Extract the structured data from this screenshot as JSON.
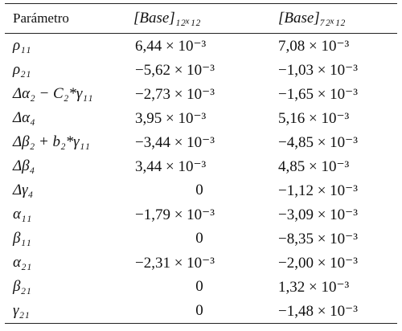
{
  "table": {
    "header": [
      "Parámetro",
      "[Base]₁₂ₓ₁₂",
      "[Base]₇₂ₓ₁₂"
    ],
    "rows": [
      [
        "ρ₁₁",
        "6,44 × 10⁻³",
        "7,08 × 10⁻³"
      ],
      [
        "ρ₂₁",
        "−5,62 × 10⁻³",
        "−1,03 × 10⁻³"
      ],
      [
        "Δα₂ − C₂*γ₁₁",
        "−2,73 × 10⁻³",
        "−1,65 × 10⁻³"
      ],
      [
        "Δα₄",
        "3,95 × 10⁻³",
        "5,16 × 10⁻³"
      ],
      [
        "Δβ₂ + b₂*γ₁₁",
        "−3,44 × 10⁻³",
        "−4,85 × 10⁻³"
      ],
      [
        "Δβ₄",
        "3,44 × 10⁻³",
        "4,85 × 10⁻³"
      ],
      [
        "Δγ₄",
        "0",
        "−1,12 × 10⁻³"
      ],
      [
        "α₁₁",
        "−1,79 × 10⁻³",
        "−3,09 × 10⁻³"
      ],
      [
        "β₁₁",
        "0",
        "−8,35 × 10⁻³"
      ],
      [
        "α₂₁",
        "−2,31 × 10⁻³",
        "−2,00 × 10⁻³"
      ],
      [
        "β₂₁",
        "0",
        "1,32 × 10⁻³"
      ],
      [
        "γ₂₁",
        "0",
        "−1,48 × 10⁻³"
      ]
    ]
  }
}
